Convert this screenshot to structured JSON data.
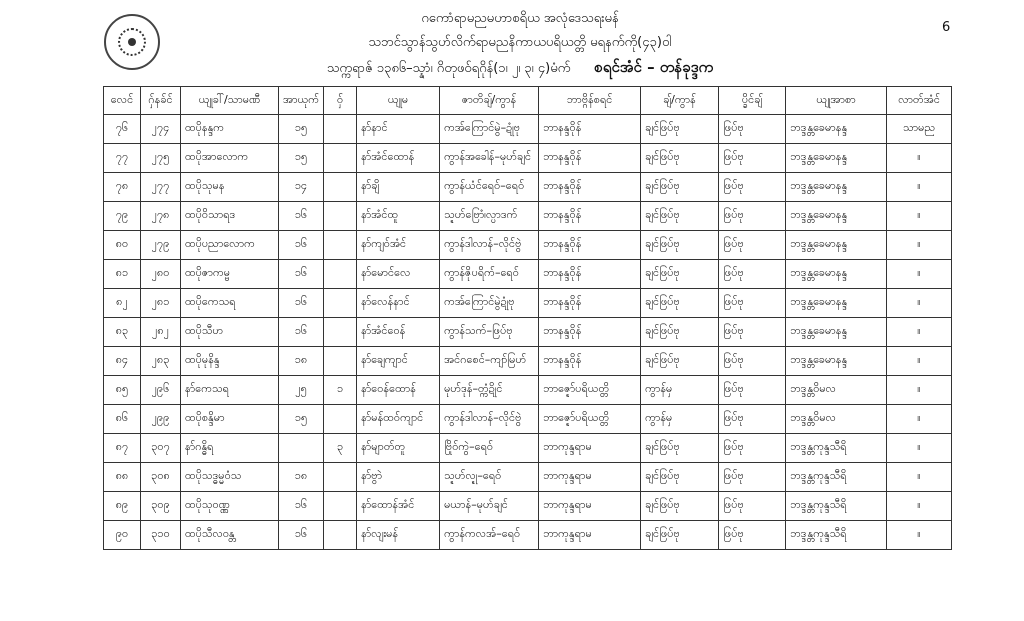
{
  "header": {
    "line1": "ဂကောံရာမညမဟာစရိယ  အလုံဒေသရးမန်",
    "line2": "သဘင်သွာန်သွဟ်လိက်ရာမညနိကာယပရိယတ္တိ မရနက်ကို(၄၃)ဝါ",
    "line3": "သက္ကရာဇ် ၁၃၈၆–သ္နာံ၊ ဂိတုဖဝ်ရဂိုန်(၁၊ ၂၊ ၃၊ ၄)မံက်",
    "level": "စရင်အံင် – တန်ခုဒ္ဒက",
    "page_number": "6"
  },
  "table": {
    "columns": [
      "လေင်",
      "ဂှ်နခ်င်",
      "ယျုခါ်/သာမဏီ",
      "အာယုက်",
      "ဝှ်",
      "ယျုမ",
      "ဇာတိချ်/ကွာန်",
      "ဘာဗ္ဂိန်စရင်",
      "ချ်/ကွာန်",
      "ပ္ခိင်ချ်",
      "ယျုအာစာ",
      "လာတ်အံင်"
    ],
    "rows": [
      [
        "၇၆",
        "၂၇၄",
        "ထပိုနန္ဒက",
        "၁၅",
        "",
        "နာ်နာင်",
        "ကအ်ကြောင်မွဲ–ဍုံဗု",
        "ဘာနန္ဒဝိုန်",
        "ချင်ဖြပ်ဗု",
        "ဖြပ်ဗု",
        "ဘဒ္ဒန္တခေမာနန္ဒ",
        "သာမည"
      ],
      [
        "၇၇",
        "၂၇၅",
        "ထပိုအာလောက",
        "၁၅",
        "",
        "နာ်အံင်ထောန်",
        "ကွာန်အခေါန်–မုဟ်ချင်",
        "ဘာနန္ဒဝိုန်",
        "ချင်ဖြပ်ဗု",
        "ဖြပ်ဗု",
        "ဘဒ္ဒန္တခေမာနန္ဒ",
        "။"
      ],
      [
        "၇၈",
        "၂၇၇",
        "ထပိုသုမန",
        "၁၄",
        "",
        "နာ်ချိ",
        "ကွာန်ယံင်ရေဝ်–ရေဝ်",
        "ဘာနန္ဒဝိုန်",
        "ချင်ဖြပ်ဗု",
        "ဖြပ်ဗု",
        "ဘဒ္ဒန္တခေမာနန္ဒ",
        "။"
      ],
      [
        "၇၉",
        "၂၇၈",
        "ထပိုဝိသာရဒ",
        "၁၆",
        "",
        "နာ်အံင်ထူ",
        "သ္ဍဟ်ဗြောံ၊လ္ပာဒက်",
        "ဘာနန္ဒဝိုန်",
        "ချင်ဖြပ်ဗု",
        "ဖြပ်ဗု",
        "ဘဒ္ဒန္တခေမာနန္ဒ",
        "။"
      ],
      [
        "၈၀",
        "၂၇၉",
        "ထပိုပညာလောက",
        "၁၆",
        "",
        "နာ်ကျဝ်အံင်",
        "ကွာန်ဒါလာန်–လိုင်ဗွဲ",
        "ဘာနန္ဒဝိုန်",
        "ချင်ဖြပ်ဗု",
        "ဖြပ်ဗု",
        "ဘဒ္ဒန္တခေမာနန္ဒ",
        "။"
      ],
      [
        "၈၁",
        "၂၈၀",
        "ထပိုဇာကမ္ဗ",
        "၁၆",
        "",
        "နာ်မောင်လေ",
        "ကွာန်ဇိုပရိက်–ရေဝ်",
        "ဘာနန္ဒဝိုန်",
        "ချင်ဖြပ်ဗု",
        "ဖြပ်ဗု",
        "ဘဒ္ဒန္တခေမာနန္ဒ",
        "။"
      ],
      [
        "၈၂",
        "၂၈၁",
        "ထပိုကေသရ",
        "၁၆",
        "",
        "နာ်လေန်နာင်",
        "ကအ်ကြောင်မွဲဍုံဗု",
        "ဘာနန္ဒဝိုန်",
        "ချင်ဖြပ်ဗု",
        "ဖြပ်ဗု",
        "ဘဒ္ဒန္တခေမာနန္ဒ",
        "။"
      ],
      [
        "၈၃",
        "၂၈၂",
        "ထပိုသီဟ",
        "၁၆",
        "",
        "နာ်အံင်ဝေန်",
        "ကွာန်သက်–ဖြပ်ဗု",
        "ဘာနန္ဒဝိုန်",
        "ချင်ဖြပ်ဗု",
        "ဖြပ်ဗု",
        "ဘဒ္ဒန္တခေမာနန္ဒ",
        "။"
      ],
      [
        "၈၄",
        "၂၈၃",
        "ထပိုမုနိန္ဒ",
        "၁၈",
        "",
        "နာ်ချေကျာင်",
        "အင်ဂစေင်–ကျာ်မြဟ်",
        "ဘာနန္ဒဝိုန်",
        "ချင်ဖြပ်ဗု",
        "ဖြပ်ဗု",
        "ဘဒ္ဒန္တခေမာနန္ဒ",
        "။"
      ],
      [
        "၈၅",
        "၂၉၆",
        "နာ်ကေသရ",
        "၂၅",
        "၁",
        "နာ်ဝေန်ထောန်",
        "မုဟ်ဒုန်–တ္ကံဍိုင်",
        "ဘာဇ္ဍော်ပရိယတ္တိ",
        "ကွာန်မှ",
        "ဖြပ်ဗု",
        "ဘဒ္ဒန္တဝိမလ",
        "။"
      ],
      [
        "၈၆",
        "၂၉၉",
        "ထပိုစန္ဒိမာ",
        "၁၅",
        "",
        "နာ်မန်ထဝ်ကျာင်",
        "ကွာန်ဒါလာန်–လိုင်ဗွဲ",
        "ဘာဇ္ဍော်ပရိယတ္တိ",
        "ကွာန်မှ",
        "ဖြပ်ဗု",
        "ဘဒ္ဒန္တဝိမလ",
        "။"
      ],
      [
        "၈၇",
        "၃၀၇",
        "နာ်ဂန္ဓိရ",
        "",
        "၃",
        "နာ်မျာတ်တူ",
        "ဗြိုဝ်ကွဲ–ရေဝ်",
        "ဘာကုန္ဒရာမ",
        "ချင်ဖြပ်ဗု",
        "ဖြပ်ဗု",
        "ဘဒ္ဒန္တကုန္ဒသီရိ",
        "။"
      ],
      [
        "၈၈",
        "၃၀၈",
        "ထပိုသဒ္ဓမ္မဝံသ",
        "၁၈",
        "",
        "နာ်ဗွာဲ",
        "သ္ဍဟ်လ္ဍု–ရေဝ်",
        "ဘာကုန္ဒရာမ",
        "ချင်ဖြပ်ဗု",
        "ဖြပ်ဗု",
        "ဘဒ္ဒန္တကုန္ဒသီရိ",
        "။"
      ],
      [
        "၈၉",
        "၃၀၉",
        "ထပိုသုဝဏ္ဏ",
        "၁၆",
        "",
        "နာ်ထောန်အံင်",
        "မယာန်–မုဟ်ချင်",
        "ဘာကုန္ဒရာမ",
        "ချင်ဖြပ်ဗု",
        "ဖြပ်ဗု",
        "ဘဒ္ဒန္တကုန္ဒသီရိ",
        "။"
      ],
      [
        "၉၀",
        "၃၁၀",
        "ထပိုသီလဝန္တ",
        "၁၆",
        "",
        "နာ်လျးမန်",
        "ကွာန်ကလအ်–ရေဝ်",
        "ဘာကုန္ဒရာမ",
        "ချင်ဖြပ်ဗု",
        "ဖြပ်ဗု",
        "ဘဒ္ဒန္တကုန္ဒသီရိ",
        "။"
      ]
    ]
  }
}
